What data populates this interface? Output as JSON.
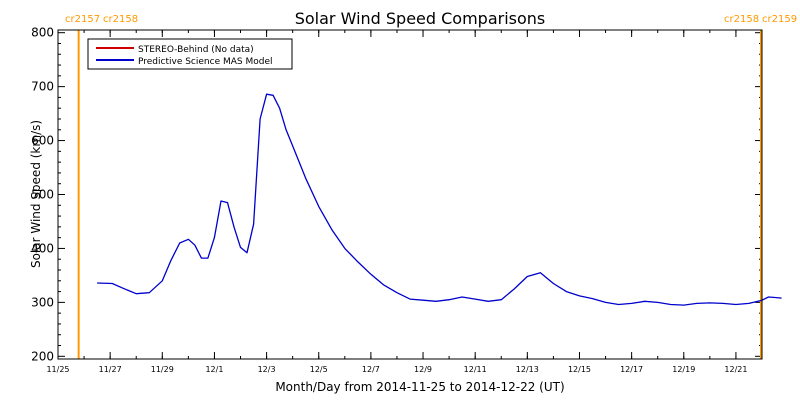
{
  "chart_data": {
    "type": "line",
    "title": "Solar Wind Speed Comparisons",
    "xlabel": "Month/Day from 2014-11-25 to 2014-12-22 (UT)",
    "ylabel": "Solar Wind Speed (km/s)",
    "xlim": [
      "2014-11-25",
      "2014-12-22"
    ],
    "ylim": [
      195,
      805
    ],
    "grid": false,
    "legend_position": "top-left",
    "yticks": [
      200,
      300,
      400,
      500,
      600,
      700,
      800
    ],
    "xticks": [
      "11/25",
      "11/27",
      "11/29",
      "12/1",
      "12/3",
      "12/5",
      "12/7",
      "12/9",
      "12/11",
      "12/13",
      "12/15",
      "12/17",
      "12/19",
      "12/21"
    ],
    "xtick_dates": [
      "2014-11-25",
      "2014-11-27",
      "2014-11-29",
      "2014-12-01",
      "2014-12-03",
      "2014-12-05",
      "2014-12-07",
      "2014-12-09",
      "2014-12-11",
      "2014-12-13",
      "2014-12-15",
      "2014-12-17",
      "2014-12-19",
      "2014-12-21"
    ],
    "series": [
      {
        "name": "STEREO-Behind (No data)",
        "color": "#cc0000",
        "x": [],
        "values": []
      },
      {
        "name": "Predictive Science MAS Model",
        "color": "#0000cc",
        "x": [
          "2014-11-26 12:00",
          "2014-11-27 02:00",
          "2014-11-27 12:00",
          "2014-11-28 00:00",
          "2014-11-28 12:00",
          "2014-11-29 00:00",
          "2014-11-29 08:00",
          "2014-11-29 16:00",
          "2014-11-30 00:00",
          "2014-11-30 06:00",
          "2014-11-30 12:00",
          "2014-11-30 18:00",
          "2014-12-01 00:00",
          "2014-12-01 06:00",
          "2014-12-01 12:00",
          "2014-12-01 18:00",
          "2014-12-02 00:00",
          "2014-12-02 06:00",
          "2014-12-02 12:00",
          "2014-12-02 18:00",
          "2014-12-03 00:00",
          "2014-12-03 06:00",
          "2014-12-03 12:00",
          "2014-12-03 18:00",
          "2014-12-04 00:00",
          "2014-12-04 12:00",
          "2014-12-05 00:00",
          "2014-12-05 12:00",
          "2014-12-06 00:00",
          "2014-12-06 12:00",
          "2014-12-07 00:00",
          "2014-12-07 12:00",
          "2014-12-08 00:00",
          "2014-12-08 12:00",
          "2014-12-09 00:00",
          "2014-12-09 12:00",
          "2014-12-10 00:00",
          "2014-12-10 12:00",
          "2014-12-11 00:00",
          "2014-12-11 12:00",
          "2014-12-12 00:00",
          "2014-12-12 12:00",
          "2014-12-13 00:00",
          "2014-12-13 12:00",
          "2014-12-14 00:00",
          "2014-12-14 12:00",
          "2014-12-15 00:00",
          "2014-12-15 12:00",
          "2014-12-16 00:00",
          "2014-12-16 12:00",
          "2014-12-17 00:00",
          "2014-12-17 12:00",
          "2014-12-18 00:00",
          "2014-12-18 12:00",
          "2014-12-19 00:00",
          "2014-12-19 12:00",
          "2014-12-20 00:00",
          "2014-12-20 12:00",
          "2014-12-21 00:00",
          "2014-12-21 12:00",
          "2014-12-22 00:00",
          "2014-12-22 06:00",
          "2014-12-22 12:00",
          "2014-12-22 18:00"
        ],
        "values": [
          336,
          335,
          326,
          316,
          318,
          340,
          378,
          410,
          417,
          406,
          382,
          382,
          420,
          488,
          485,
          440,
          402,
          392,
          445,
          640,
          686,
          684,
          660,
          620,
          590,
          530,
          478,
          435,
          400,
          375,
          352,
          332,
          318,
          306,
          304,
          302,
          305,
          310,
          306,
          302,
          305,
          325,
          348,
          355,
          335,
          320,
          312,
          307,
          300,
          296,
          298,
          302,
          300,
          296,
          295,
          298,
          299,
          298,
          296,
          298,
          304,
          310,
          309,
          308
        ]
      }
    ],
    "carrington_labels": [
      {
        "text": "cr2157",
        "side": "left"
      },
      {
        "text": "cr2158",
        "side": "left"
      },
      {
        "text": "cr2158",
        "side": "right"
      },
      {
        "text": "cr2159",
        "side": "right"
      }
    ],
    "carrington_boundaries": [
      "2014-11-25 19:00",
      "2014-12-22 23:00"
    ],
    "marker_color": "#ff9900"
  }
}
